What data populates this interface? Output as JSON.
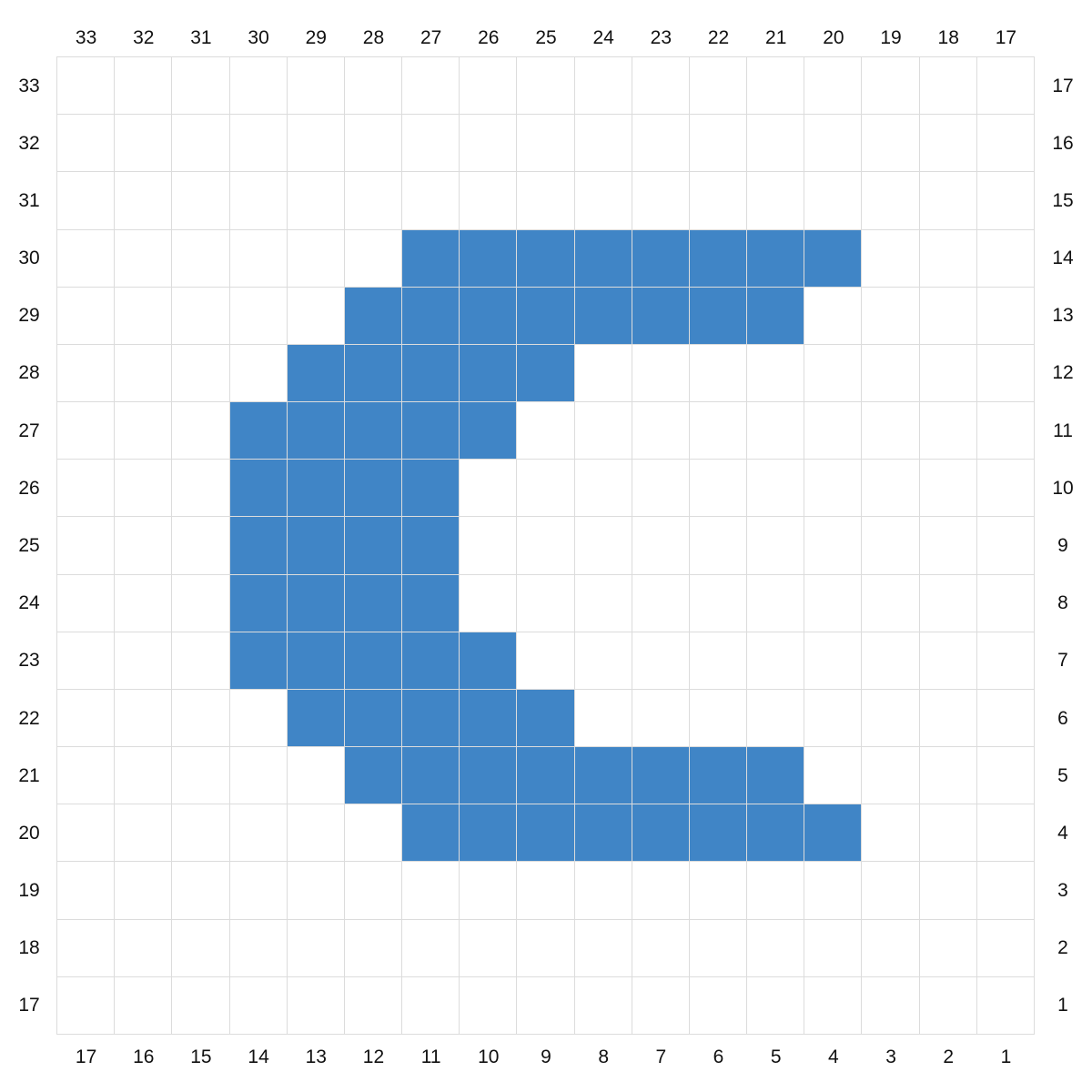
{
  "top_labels": [
    "33",
    "32",
    "31",
    "30",
    "29",
    "28",
    "27",
    "26",
    "25",
    "24",
    "23",
    "22",
    "21",
    "20",
    "19",
    "18",
    "17"
  ],
  "bottom_labels": [
    "17",
    "16",
    "15",
    "14",
    "13",
    "12",
    "11",
    "10",
    "9",
    "8",
    "7",
    "6",
    "5",
    "4",
    "3",
    "2",
    "1"
  ],
  "left_labels": [
    "33",
    "32",
    "31",
    "30",
    "29",
    "28",
    "27",
    "26",
    "25",
    "24",
    "23",
    "22",
    "21",
    "20",
    "19",
    "18",
    "17"
  ],
  "right_labels": [
    "17",
    "16",
    "15",
    "14",
    "13",
    "12",
    "11",
    "10",
    "9",
    "8",
    "7",
    "6",
    "5",
    "4",
    "3",
    "2",
    "1"
  ],
  "colors": {
    "filled": "#4085c6",
    "empty": "#ffffff",
    "gridline": "#dcdcdc"
  },
  "grid": [
    "00000000000000000",
    "00000000000000000",
    "00000000000000000",
    "00000011111111000",
    "00000111111110000",
    "00001111100000000",
    "00011111000000000",
    "00011110000000000",
    "00011110000000000",
    "00011110000000000",
    "00011111000000000",
    "00001111100000000",
    "00000111111110000",
    "00000011111111000",
    "00000000000000000",
    "00000000000000000",
    "00000000000000000"
  ]
}
